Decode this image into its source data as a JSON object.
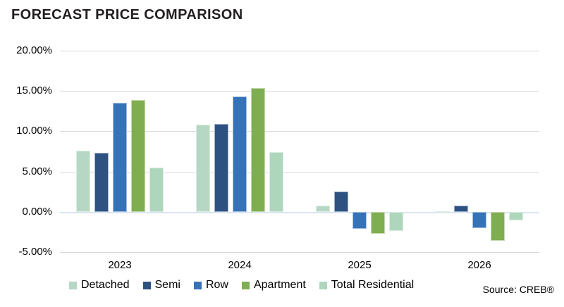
{
  "title": "FORECAST PRICE COMPARISON",
  "source": "Source: CREB®",
  "chart_data": {
    "type": "bar",
    "title": "FORECAST PRICE COMPARISON",
    "categories": [
      "2023",
      "2024",
      "2025",
      "2026"
    ],
    "series": [
      {
        "name": "Detached",
        "color": "#b6d7c4",
        "values": [
          7.6,
          10.8,
          0.8,
          0.1
        ]
      },
      {
        "name": "Semi",
        "color": "#2d5180",
        "values": [
          7.3,
          10.9,
          2.5,
          0.8
        ]
      },
      {
        "name": "Row",
        "color": "#3572b8",
        "values": [
          13.5,
          14.3,
          -2.1,
          -2.0
        ]
      },
      {
        "name": "Apartment",
        "color": "#7fae50",
        "values": [
          13.9,
          15.4,
          -2.7,
          -3.6
        ]
      },
      {
        "name": "Total Residential",
        "color": "#aed6bd",
        "values": [
          5.5,
          7.4,
          -2.4,
          -1.1
        ]
      }
    ],
    "ylim": [
      -5,
      20
    ],
    "yticks": [
      {
        "value": 20,
        "label": "20.00%"
      },
      {
        "value": 15,
        "label": "15.00%"
      },
      {
        "value": 10,
        "label": "10.00%"
      },
      {
        "value": 5,
        "label": "5.00%"
      },
      {
        "value": 0,
        "label": "0.00%"
      },
      {
        "value": -5,
        "label": "-5.00%"
      }
    ],
    "xlabel": "",
    "ylabel": "",
    "grid": "horizontal",
    "legend_position": "bottom"
  },
  "colors": {
    "gridline": "#d9d9d9",
    "zero_line": "#d9e5f2",
    "title_text": "#231f20",
    "axis_text": "#000000",
    "background": "#ffffff"
  }
}
